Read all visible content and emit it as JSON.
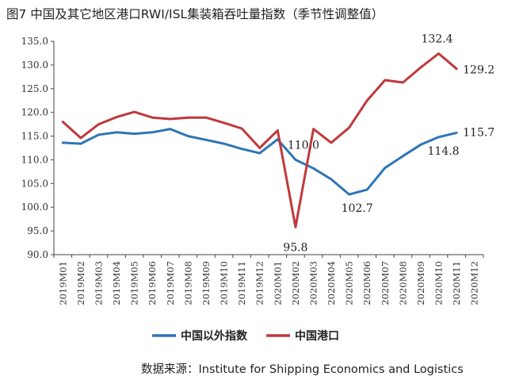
{
  "title": "图7  中国及其它地区港口RWI/ISL集装箱吞吐量指数（季节性调整值）",
  "source": "数据来源：Institute for Shipping Economics and Logistics",
  "chart_data": {
    "type": "line",
    "title": "图7  中国及其它地区港口RWI/ISL集装箱吞吐量指数（季节性调整值）",
    "xlabel": "",
    "ylabel": "",
    "categories": [
      "2019M01",
      "2019M02",
      "2019M03",
      "2019M04",
      "2019M05",
      "2019M06",
      "2019M07",
      "2019M08",
      "2019M09",
      "2019M10",
      "2019M11",
      "2019M12",
      "2020M01",
      "2020M02",
      "2020M03",
      "2020M04",
      "2020M05",
      "2020M06",
      "2020M07",
      "2020M08",
      "2020M09",
      "2020M10",
      "2020M11",
      "2020M12"
    ],
    "y_ticks": [
      "90.0",
      "95.0",
      "100.0",
      "105.0",
      "110.0",
      "115.0",
      "120.0",
      "125.0",
      "130.0",
      "135.0"
    ],
    "ylim": [
      90,
      135
    ],
    "grid": false,
    "legend_position": "bottom",
    "series": [
      {
        "name": "中国以外指数",
        "color": "#2e75b6",
        "values": [
          113.6,
          113.4,
          115.3,
          115.8,
          115.5,
          115.8,
          116.5,
          115.0,
          114.2,
          113.4,
          112.3,
          111.4,
          114.3,
          110.0,
          108.2,
          105.9,
          102.7,
          103.7,
          108.3,
          110.8,
          113.2,
          114.8,
          115.7,
          null
        ]
      },
      {
        "name": "中国港口",
        "color": "#c0393b",
        "values": [
          118.0,
          114.6,
          117.5,
          119.0,
          120.1,
          118.9,
          118.6,
          118.9,
          118.9,
          117.8,
          116.6,
          112.5,
          116.2,
          95.8,
          116.5,
          113.6,
          116.8,
          122.5,
          126.8,
          126.3,
          129.5,
          132.4,
          129.2,
          null
        ]
      }
    ],
    "annotations": [
      {
        "series": 0,
        "index": 13,
        "text": "110.0"
      },
      {
        "series": 0,
        "index": 16,
        "text": "102.7"
      },
      {
        "series": 0,
        "index": 21,
        "text": "114.8"
      },
      {
        "series": 0,
        "index": 22,
        "text": "115.7"
      },
      {
        "series": 1,
        "index": 13,
        "text": "95.8"
      },
      {
        "series": 1,
        "index": 21,
        "text": "132.4"
      },
      {
        "series": 1,
        "index": 22,
        "text": "129.2"
      }
    ]
  }
}
